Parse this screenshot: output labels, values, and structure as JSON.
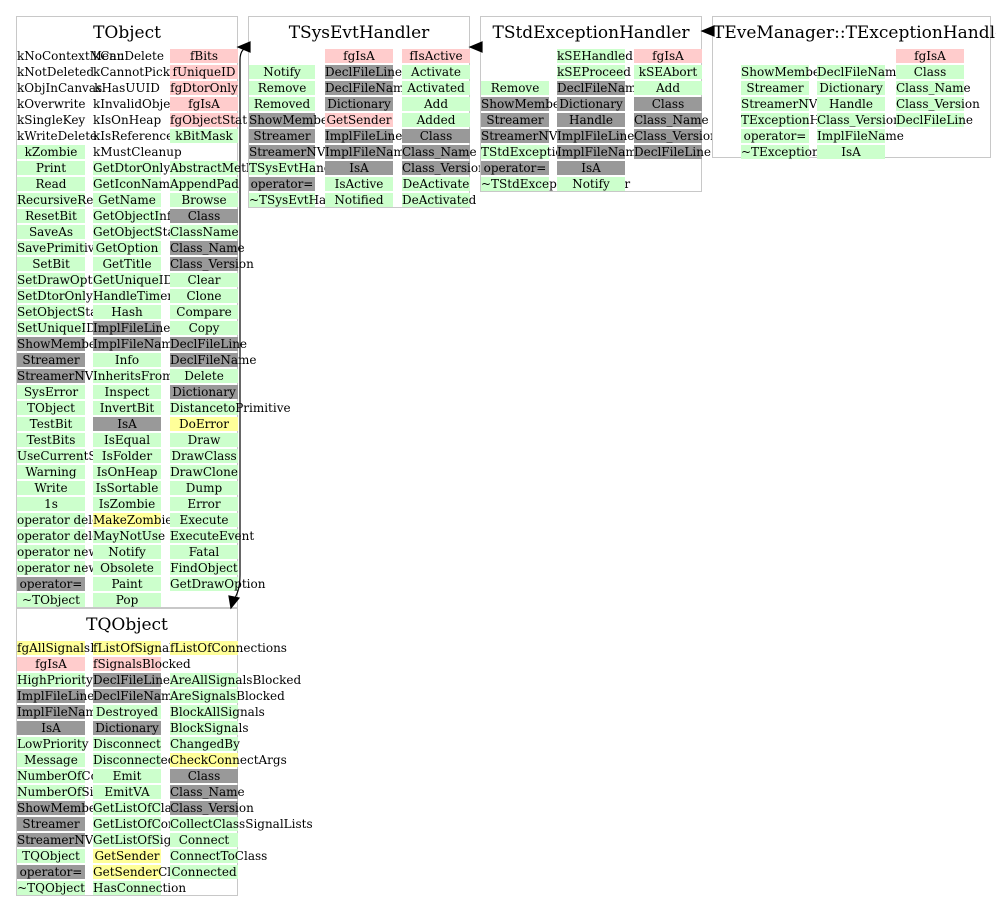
{
  "classes": [
    {
      "id": "tobject",
      "title": "TObject",
      "columns": [
        [
          [
            "kNoContextMenu",
            "n"
          ],
          [
            "kNotDeleted",
            "n"
          ],
          [
            "kObjInCanvas",
            "n"
          ],
          [
            "kOverwrite",
            "n"
          ],
          [
            "kSingleKey",
            "n"
          ],
          [
            "kWriteDelete",
            "n"
          ],
          [
            "kZombie",
            "m"
          ],
          [
            "Print",
            "m"
          ],
          [
            "Read",
            "m"
          ],
          [
            "RecursiveRemove",
            "m"
          ],
          [
            "ResetBit",
            "m"
          ],
          [
            "SaveAs",
            "m"
          ],
          [
            "SavePrimitive",
            "m"
          ],
          [
            "SetBit",
            "m"
          ],
          [
            "SetDrawOption",
            "m"
          ],
          [
            "SetDtorOnly",
            "m"
          ],
          [
            "SetObjectStat",
            "m"
          ],
          [
            "SetUniqueID",
            "m"
          ],
          [
            "ShowMembers",
            "d"
          ],
          [
            "Streamer",
            "d"
          ],
          [
            "StreamerNVirtual",
            "d"
          ],
          [
            "SysError",
            "m"
          ],
          [
            "TObject",
            "m"
          ],
          [
            "TestBit",
            "m"
          ],
          [
            "TestBits",
            "m"
          ],
          [
            "UseCurrentStyle",
            "m"
          ],
          [
            "Warning",
            "m"
          ],
          [
            "Write",
            "m"
          ],
          [
            "1s",
            "m"
          ],
          [
            "operator delete",
            "m"
          ],
          [
            "operator delete[]",
            "m"
          ],
          [
            "operator new",
            "m"
          ],
          [
            "operator new[]",
            "m"
          ],
          [
            "operator=",
            "d"
          ],
          [
            "~TObject",
            "m"
          ]
        ],
        [
          [
            "kCanDelete",
            "n"
          ],
          [
            "kCannotPick",
            "n"
          ],
          [
            "kHasUUID",
            "n"
          ],
          [
            "kInvalidObject",
            "n"
          ],
          [
            "kIsOnHeap",
            "n"
          ],
          [
            "kIsReferenced",
            "n"
          ],
          [
            "kMustCleanup",
            "n"
          ],
          [
            "GetDtorOnly",
            "m"
          ],
          [
            "GetIconName",
            "m"
          ],
          [
            "GetName",
            "m"
          ],
          [
            "GetObjectInfo",
            "m"
          ],
          [
            "GetObjectStat",
            "m"
          ],
          [
            "GetOption",
            "m"
          ],
          [
            "GetTitle",
            "m"
          ],
          [
            "GetUniqueID",
            "m"
          ],
          [
            "HandleTimer",
            "m"
          ],
          [
            "Hash",
            "m"
          ],
          [
            "ImplFileLine",
            "d"
          ],
          [
            "ImplFileName",
            "d"
          ],
          [
            "Info",
            "m"
          ],
          [
            "InheritsFrom",
            "m"
          ],
          [
            "Inspect",
            "m"
          ],
          [
            "InvertBit",
            "m"
          ],
          [
            "IsA",
            "d"
          ],
          [
            "IsEqual",
            "m"
          ],
          [
            "IsFolder",
            "m"
          ],
          [
            "IsOnHeap",
            "m"
          ],
          [
            "IsSortable",
            "m"
          ],
          [
            "IsZombie",
            "m"
          ],
          [
            "MakeZombie",
            "h"
          ],
          [
            "MayNotUse",
            "m"
          ],
          [
            "Notify",
            "m"
          ],
          [
            "Obsolete",
            "m"
          ],
          [
            "Paint",
            "m"
          ],
          [
            "Pop",
            "m"
          ]
        ],
        [
          [
            "fBits",
            "i"
          ],
          [
            "fUniqueID",
            "i"
          ],
          [
            "fgDtorOnly",
            "i"
          ],
          [
            "fgIsA",
            "i"
          ],
          [
            "fgObjectStat",
            "i"
          ],
          [
            "kBitMask",
            "m"
          ],
          [
            "",
            "n"
          ],
          [
            "AbstractMethod",
            "m"
          ],
          [
            "AppendPad",
            "m"
          ],
          [
            "Browse",
            "m"
          ],
          [
            "Class",
            "d"
          ],
          [
            "ClassName",
            "m"
          ],
          [
            "Class_Name",
            "d"
          ],
          [
            "Class_Version",
            "d"
          ],
          [
            "Clear",
            "m"
          ],
          [
            "Clone",
            "m"
          ],
          [
            "Compare",
            "m"
          ],
          [
            "Copy",
            "m"
          ],
          [
            "DeclFileLine",
            "d"
          ],
          [
            "DeclFileName",
            "d"
          ],
          [
            "Delete",
            "m"
          ],
          [
            "Dictionary",
            "d"
          ],
          [
            "DistancetoPrimitive",
            "m"
          ],
          [
            "DoError",
            "h"
          ],
          [
            "Draw",
            "m"
          ],
          [
            "DrawClass",
            "m"
          ],
          [
            "DrawClone",
            "m"
          ],
          [
            "Dump",
            "m"
          ],
          [
            "Error",
            "m"
          ],
          [
            "Execute",
            "m"
          ],
          [
            "ExecuteEvent",
            "m"
          ],
          [
            "Fatal",
            "m"
          ],
          [
            "FindObject",
            "m"
          ],
          [
            "GetDrawOption",
            "m"
          ]
        ]
      ]
    },
    {
      "id": "tsysevthandler",
      "title": "TSysEvtHandler",
      "columns": [
        [
          [
            "",
            "n"
          ],
          [
            "Notify",
            "m"
          ],
          [
            "Remove",
            "m"
          ],
          [
            "Removed",
            "m"
          ],
          [
            "ShowMembers",
            "d"
          ],
          [
            "Streamer",
            "d"
          ],
          [
            "StreamerNVirtual",
            "d"
          ],
          [
            "TSysEvtHandler",
            "m"
          ],
          [
            "operator=",
            "d"
          ],
          [
            "~TSysEvtHandler",
            "m"
          ]
        ],
        [
          [
            "fgIsA",
            "i"
          ],
          [
            "DeclFileLine",
            "d"
          ],
          [
            "DeclFileName",
            "d"
          ],
          [
            "Dictionary",
            "d"
          ],
          [
            "GetSender",
            "i"
          ],
          [
            "ImplFileLine",
            "d"
          ],
          [
            "ImplFileName",
            "d"
          ],
          [
            "IsA",
            "d"
          ],
          [
            "IsActive",
            "m"
          ],
          [
            "Notified",
            "m"
          ]
        ],
        [
          [
            "fIsActive",
            "i"
          ],
          [
            "Activate",
            "m"
          ],
          [
            "Activated",
            "m"
          ],
          [
            "Add",
            "m"
          ],
          [
            "Added",
            "m"
          ],
          [
            "Class",
            "d"
          ],
          [
            "Class_Name",
            "d"
          ],
          [
            "Class_Version",
            "d"
          ],
          [
            "DeActivate",
            "m"
          ],
          [
            "DeActivated",
            "m"
          ]
        ]
      ]
    },
    {
      "id": "tstdexceptionhandler",
      "title": "TStdExceptionHandler",
      "columns": [
        [
          [
            "",
            "n"
          ],
          [
            "",
            "n"
          ],
          [
            "Remove",
            "m"
          ],
          [
            "ShowMembers",
            "d"
          ],
          [
            "Streamer",
            "d"
          ],
          [
            "StreamerNVirtual",
            "d"
          ],
          [
            "TStdExceptionHandler",
            "m"
          ],
          [
            "operator=",
            "d"
          ],
          [
            "~TStdExceptionHandler",
            "m"
          ]
        ],
        [
          [
            "kSEHandled",
            "m"
          ],
          [
            "kSEProceed",
            "m"
          ],
          [
            "DeclFileName",
            "d"
          ],
          [
            "Dictionary",
            "d"
          ],
          [
            "Handle",
            "d"
          ],
          [
            "ImplFileLine",
            "d"
          ],
          [
            "ImplFileName",
            "d"
          ],
          [
            "IsA",
            "d"
          ],
          [
            "Notify",
            "m"
          ]
        ],
        [
          [
            "fgIsA",
            "i"
          ],
          [
            "kSEAbort",
            "m"
          ],
          [
            "Add",
            "m"
          ],
          [
            "Class",
            "d"
          ],
          [
            "Class_Name",
            "d"
          ],
          [
            "Class_Version",
            "d"
          ],
          [
            "DeclFileLine",
            "d"
          ]
        ]
      ]
    },
    {
      "id": "texceptionhandler",
      "title": "TEveManager::TExceptionHandler",
      "columns": [
        [
          [
            "",
            "n"
          ],
          [
            "ShowMembers",
            "m"
          ],
          [
            "Streamer",
            "m"
          ],
          [
            "StreamerNVirtual",
            "m"
          ],
          [
            "TExceptionHandler",
            "m"
          ],
          [
            "operator=",
            "m"
          ],
          [
            "~TExceptionHandler",
            "m"
          ]
        ],
        [
          [
            "",
            "n"
          ],
          [
            "DeclFileName",
            "m"
          ],
          [
            "Dictionary",
            "m"
          ],
          [
            "Handle",
            "m"
          ],
          [
            "Class_Version",
            "m"
          ],
          [
            "ImplFileName",
            "m"
          ],
          [
            "IsA",
            "m"
          ]
        ],
        [
          [
            "fgIsA",
            "i"
          ],
          [
            "Class",
            "m"
          ],
          [
            "Class_Name",
            "m"
          ],
          [
            "Class_Version",
            "m"
          ],
          [
            "DeclFileLine",
            "m"
          ]
        ]
      ]
    },
    {
      "id": "tqobject",
      "title": "TQObject",
      "columns": [
        [
          [
            "fgAllSignalsBlocked",
            "h"
          ],
          [
            "fgIsA",
            "i"
          ],
          [
            "HighPriority",
            "m"
          ],
          [
            "ImplFileLine",
            "d"
          ],
          [
            "ImplFileName",
            "d"
          ],
          [
            "IsA",
            "d"
          ],
          [
            "LowPriority",
            "m"
          ],
          [
            "Message",
            "m"
          ],
          [
            "NumberOfConnections",
            "m"
          ],
          [
            "NumberOfSignals",
            "m"
          ],
          [
            "ShowMembers",
            "d"
          ],
          [
            "Streamer",
            "d"
          ],
          [
            "StreamerNVirtual",
            "d"
          ],
          [
            "TQObject",
            "m"
          ],
          [
            "operator=",
            "d"
          ],
          [
            "~TQObject",
            "m"
          ]
        ],
        [
          [
            "fListOfSignals",
            "h"
          ],
          [
            "fSignalsBlocked",
            "i"
          ],
          [
            "DeclFileLine",
            "d"
          ],
          [
            "DeclFileName",
            "d"
          ],
          [
            "Destroyed",
            "m"
          ],
          [
            "Dictionary",
            "d"
          ],
          [
            "Disconnect",
            "m"
          ],
          [
            "Disconnected",
            "m"
          ],
          [
            "Emit",
            "m"
          ],
          [
            "EmitVA",
            "m"
          ],
          [
            "GetListOfClassSignals",
            "m"
          ],
          [
            "GetListOfConnections",
            "m"
          ],
          [
            "GetListOfSignals",
            "m"
          ],
          [
            "GetSender",
            "h"
          ],
          [
            "GetSenderClassName",
            "h"
          ],
          [
            "HasConnection",
            "m"
          ]
        ],
        [
          [
            "fListOfConnections",
            "h"
          ],
          [
            "",
            "n"
          ],
          [
            "AreAllSignalsBlocked",
            "m"
          ],
          [
            "AreSignalsBlocked",
            "m"
          ],
          [
            "BlockAllSignals",
            "m"
          ],
          [
            "BlockSignals",
            "m"
          ],
          [
            "ChangedBy",
            "m"
          ],
          [
            "CheckConnectArgs",
            "h"
          ],
          [
            "Class",
            "d"
          ],
          [
            "Class_Name",
            "d"
          ],
          [
            "Class_Version",
            "d"
          ],
          [
            "CollectClassSignalLists",
            "m"
          ],
          [
            "Connect",
            "m"
          ],
          [
            "ConnectToClass",
            "m"
          ],
          [
            "Connected",
            "m"
          ]
        ]
      ]
    }
  ]
}
